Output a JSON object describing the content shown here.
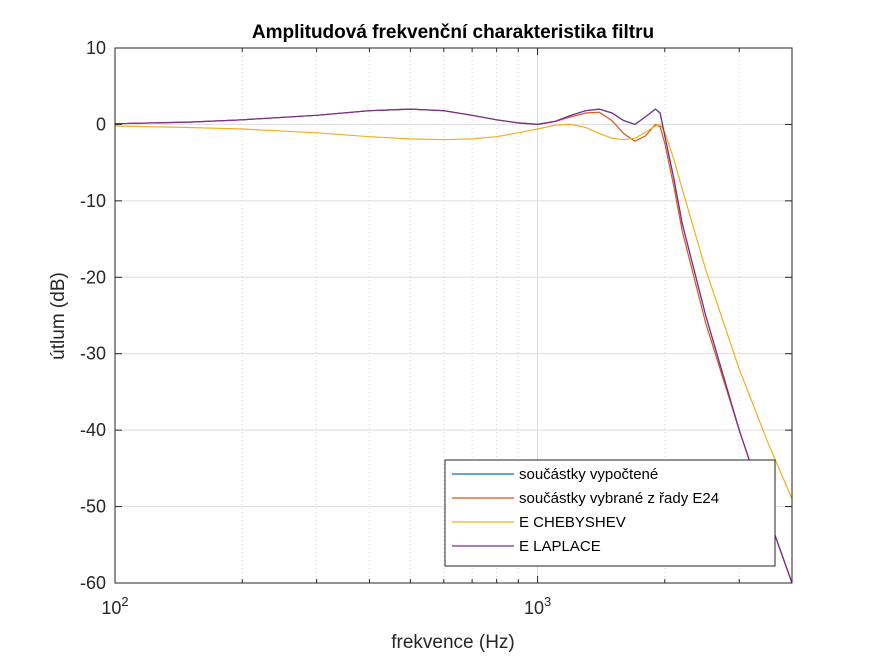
{
  "chart_data": {
    "type": "line",
    "title": "Amplitudová frekvenční charakteristika filtru",
    "xlabel": "frekvence (Hz)",
    "ylabel": "útlum (dB)",
    "x_scale": "log",
    "xlim": [
      100,
      4000
    ],
    "ylim": [
      -60,
      10
    ],
    "yticks": [
      10,
      0,
      -10,
      -20,
      -30,
      -40,
      -50,
      -60
    ],
    "ytick_labels": [
      "10",
      "0",
      "-10",
      "-20",
      "-30",
      "-40",
      "-50",
      "-60"
    ],
    "xticks": [
      100,
      1000
    ],
    "xtick_labels": [
      {
        "base": "10",
        "exp": "2"
      },
      {
        "base": "10",
        "exp": "3"
      }
    ],
    "grid": true,
    "legend_position": "bottom-right",
    "series": [
      {
        "name": "součástky vypočtené",
        "color": "#0072BD",
        "x": [
          100,
          150,
          200,
          300,
          400,
          500,
          600,
          700,
          800,
          900,
          1000,
          1100,
          1200,
          1300,
          1400,
          1500,
          1600,
          1700,
          1800,
          1900,
          1950,
          2000,
          2100,
          2200,
          2500,
          3000,
          3500,
          4000
        ],
        "y": [
          0.1,
          0.3,
          0.6,
          1.2,
          1.8,
          2.0,
          1.8,
          1.2,
          0.6,
          0.2,
          0.0,
          0.4,
          1.2,
          1.8,
          2.0,
          1.5,
          0.5,
          0.0,
          1.0,
          2.0,
          1.5,
          -1.5,
          -7,
          -13,
          -25,
          -40,
          -51,
          -60
        ]
      },
      {
        "name": "součástky vybrané z řady E24",
        "color": "#D95319",
        "x": [
          100,
          150,
          200,
          300,
          400,
          500,
          600,
          700,
          800,
          900,
          1000,
          1100,
          1200,
          1300,
          1400,
          1500,
          1600,
          1700,
          1800,
          1900,
          1950,
          2000,
          2100,
          2200,
          2500,
          3000,
          3500,
          4000
        ],
        "y": [
          0.1,
          0.3,
          0.6,
          1.2,
          1.8,
          2.0,
          1.8,
          1.2,
          0.6,
          0.2,
          0.0,
          0.4,
          1.0,
          1.5,
          1.6,
          0.5,
          -1.2,
          -2.2,
          -1.5,
          0.0,
          -0.3,
          -2.5,
          -8,
          -14,
          -26,
          -40,
          -51,
          -60
        ]
      },
      {
        "name": "E CHEBYSHEV",
        "color": "#EDB120",
        "x": [
          100,
          150,
          200,
          300,
          400,
          500,
          600,
          700,
          800,
          900,
          1000,
          1100,
          1200,
          1300,
          1400,
          1500,
          1600,
          1700,
          1800,
          1900,
          1950,
          2000,
          2100,
          2200,
          2500,
          3000,
          3500,
          4000
        ],
        "y": [
          -0.2,
          -0.4,
          -0.6,
          -1.1,
          -1.6,
          -1.9,
          -2.0,
          -1.9,
          -1.6,
          -1.1,
          -0.6,
          -0.1,
          0.0,
          -0.4,
          -1.2,
          -1.8,
          -2.0,
          -1.8,
          -1.0,
          -0.2,
          0.0,
          -1.0,
          -4.5,
          -8.5,
          -19,
          -32,
          -41.5,
          -49
        ]
      },
      {
        "name": "E LAPLACE",
        "color": "#7E2F8E",
        "x": [
          100,
          150,
          200,
          300,
          400,
          500,
          600,
          700,
          800,
          900,
          1000,
          1100,
          1200,
          1300,
          1400,
          1500,
          1600,
          1700,
          1800,
          1900,
          1950,
          2000,
          2100,
          2200,
          2500,
          3000,
          3500,
          4000
        ],
        "y": [
          0.1,
          0.3,
          0.6,
          1.2,
          1.8,
          2.0,
          1.8,
          1.2,
          0.6,
          0.2,
          0.0,
          0.4,
          1.2,
          1.8,
          2.0,
          1.5,
          0.5,
          0.0,
          1.0,
          2.0,
          1.5,
          -1.5,
          -7,
          -13,
          -25,
          -40,
          -51,
          -60
        ]
      }
    ]
  }
}
